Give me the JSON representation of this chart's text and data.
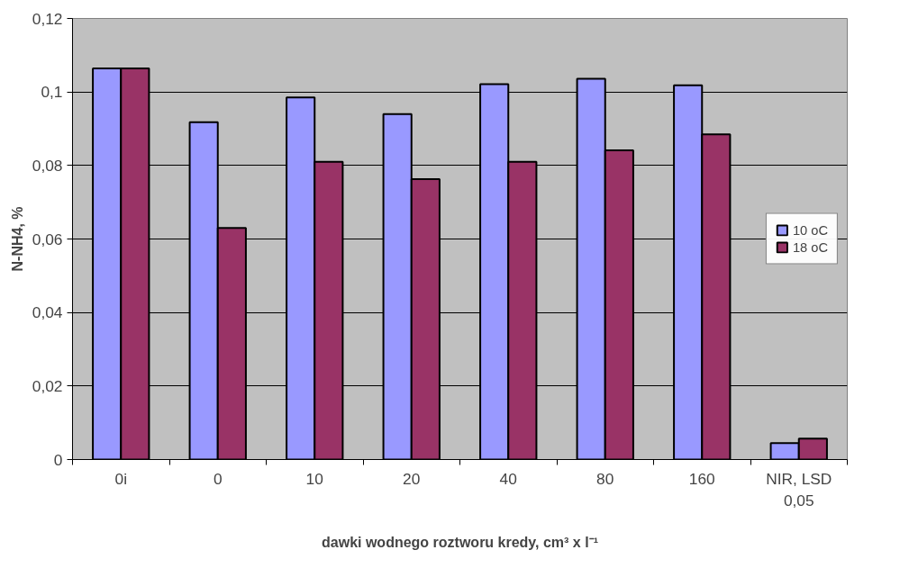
{
  "chart_data": {
    "type": "bar",
    "xlabel": "dawki wodnego roztworu kredy, cm³ x l⁻¹",
    "ylabel": "N-NH4, %",
    "categories": [
      "0i",
      "0",
      "10",
      "20",
      "40",
      "80",
      "160",
      "NIR, LSD 0,05"
    ],
    "series": [
      {
        "name": "10 oC",
        "color": "#9999ff",
        "values": [
          0.1064,
          0.0918,
          0.0985,
          0.094,
          0.1021,
          0.1036,
          0.1018,
          0.0045
        ]
      },
      {
        "name": "18 oC",
        "color": "#993366",
        "values": [
          0.1064,
          0.063,
          0.081,
          0.0763,
          0.081,
          0.0841,
          0.0885,
          0.0057
        ]
      }
    ],
    "ylim": [
      0,
      0.12
    ],
    "yticks": [
      {
        "value": 0,
        "label": "0"
      },
      {
        "value": 0.02,
        "label": "0,02"
      },
      {
        "value": 0.04,
        "label": "0,04"
      },
      {
        "value": 0.06,
        "label": "0,06"
      },
      {
        "value": 0.08,
        "label": "0,08"
      },
      {
        "value": 0.1,
        "label": "0,1"
      },
      {
        "value": 0.12,
        "label": "0,12"
      }
    ],
    "grid": "y",
    "legend": "right"
  }
}
